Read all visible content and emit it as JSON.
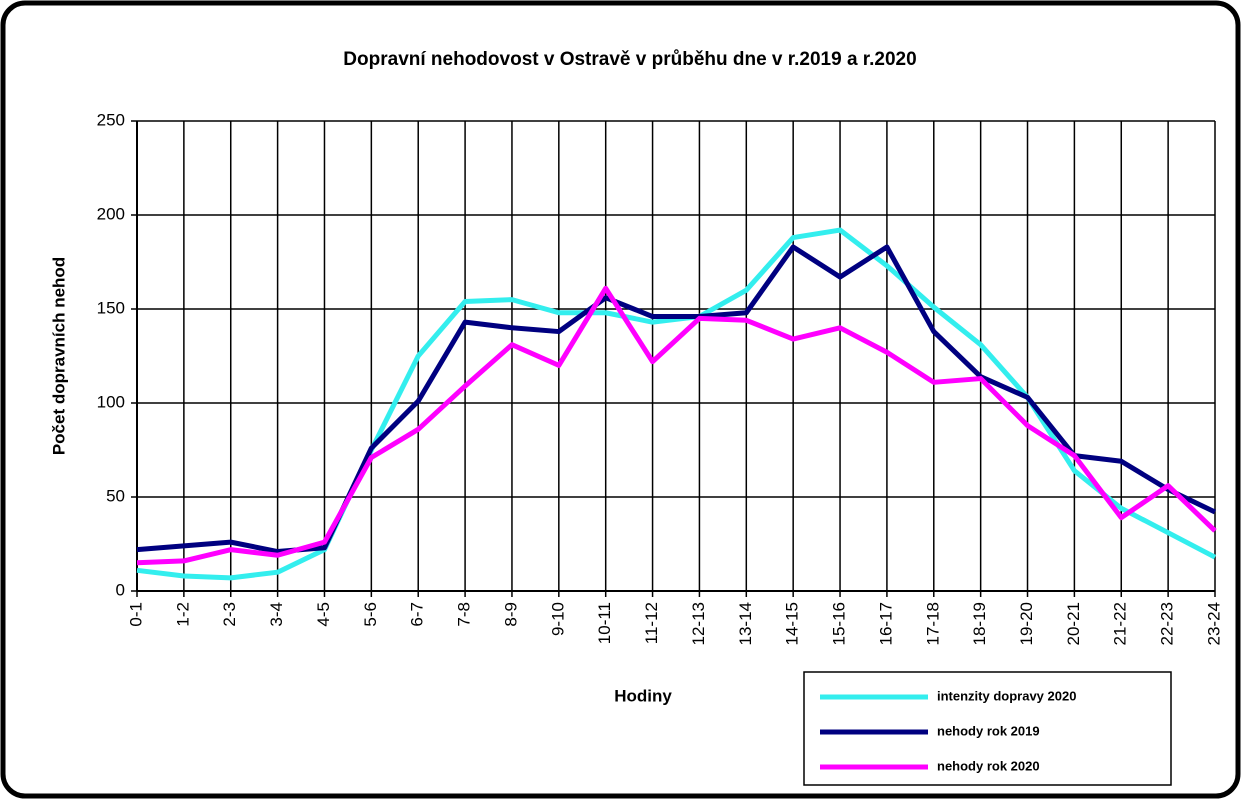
{
  "chart_data": {
    "type": "line",
    "title": "Dopravní nehodovost  v Ostravě  v průběhu dne  v r.2019  a r.2020",
    "x_label": "Hodiny",
    "y_label": "Počet dopravních nehod",
    "categories": [
      "0-1",
      "1-2",
      "2-3",
      "3-4",
      "4-5",
      "5-6",
      "6-7",
      "7-8",
      "8-9",
      "9-10",
      "10-11",
      "11-12",
      "12-13",
      "13-14",
      "14-15",
      "15-16",
      "16-17",
      "17-18",
      "18-19",
      "19-20",
      "20-21",
      "21-22",
      "22-23",
      "23-24"
    ],
    "series": [
      {
        "name": "intenzity dopravy 2020",
        "color": "#33eeee",
        "values": [
          11,
          8,
          7,
          10,
          22,
          75,
          125,
          154,
          155,
          148,
          148,
          143,
          146,
          160,
          188,
          192,
          173,
          151,
          131,
          103,
          64,
          44,
          31,
          18
        ]
      },
      {
        "name": "nehody rok 2019",
        "color": "#000080",
        "values": [
          22,
          24,
          26,
          21,
          23,
          76,
          101,
          143,
          140,
          138,
          156,
          146,
          146,
          148,
          183,
          167,
          183,
          138,
          114,
          103,
          72,
          69,
          54,
          42
        ]
      },
      {
        "name": "nehody rok 2020",
        "color": "#ff00ff",
        "values": [
          15,
          16,
          22,
          19,
          26,
          71,
          86,
          109,
          131,
          120,
          161,
          122,
          145,
          144,
          134,
          140,
          127,
          111,
          113,
          88,
          72,
          39,
          56,
          32
        ]
      }
    ],
    "ylim": [
      0,
      250
    ],
    "yticks": [
      0,
      50,
      100,
      150,
      200,
      250
    ],
    "grid": true
  }
}
